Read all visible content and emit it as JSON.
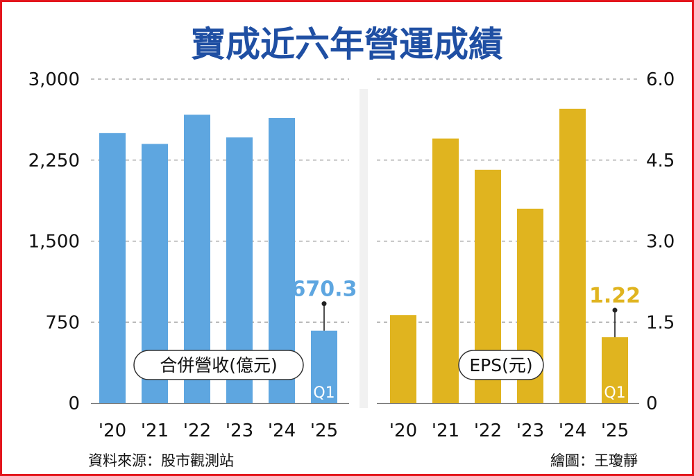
{
  "title": "寶成近六年營運成績",
  "source": "資料來源：股市觀測站",
  "credit": "繪圖：王瓊靜",
  "colors": {
    "revenue": "#5ea6e0",
    "eps": "#e0b41f",
    "title": "#1f4fa3",
    "frame": "#e3161d"
  },
  "chart_data": [
    {
      "type": "bar",
      "label": "合併營收(億元)",
      "categories": [
        "'20",
        "'21",
        "'22",
        "'23",
        "'24",
        "'25"
      ],
      "values": [
        2500,
        2400,
        2670,
        2460,
        2640,
        670.3
      ],
      "ylim": [
        0,
        3000
      ],
      "yticks": [
        "0",
        "750",
        "1,500",
        "2,250",
        "3,000"
      ],
      "yticks_values": [
        0,
        750,
        1500,
        2250,
        3000
      ],
      "annotation": {
        "category": "'25",
        "text": "670.3",
        "tag": "Q1"
      },
      "grid": true
    },
    {
      "type": "bar",
      "label": "EPS(元)",
      "categories": [
        "'20",
        "'21",
        "'22",
        "'23",
        "'24",
        "'25"
      ],
      "values": [
        1.63,
        4.9,
        4.32,
        3.6,
        5.45,
        1.22
      ],
      "ylim": [
        0,
        6.0
      ],
      "yticks": [
        "0",
        "1.5",
        "3.0",
        "4.5",
        "6.0"
      ],
      "yticks_values": [
        0,
        1.5,
        3.0,
        4.5,
        6.0
      ],
      "annotation": {
        "category": "'25",
        "text": "1.22",
        "tag": "Q1"
      },
      "grid": true
    }
  ]
}
